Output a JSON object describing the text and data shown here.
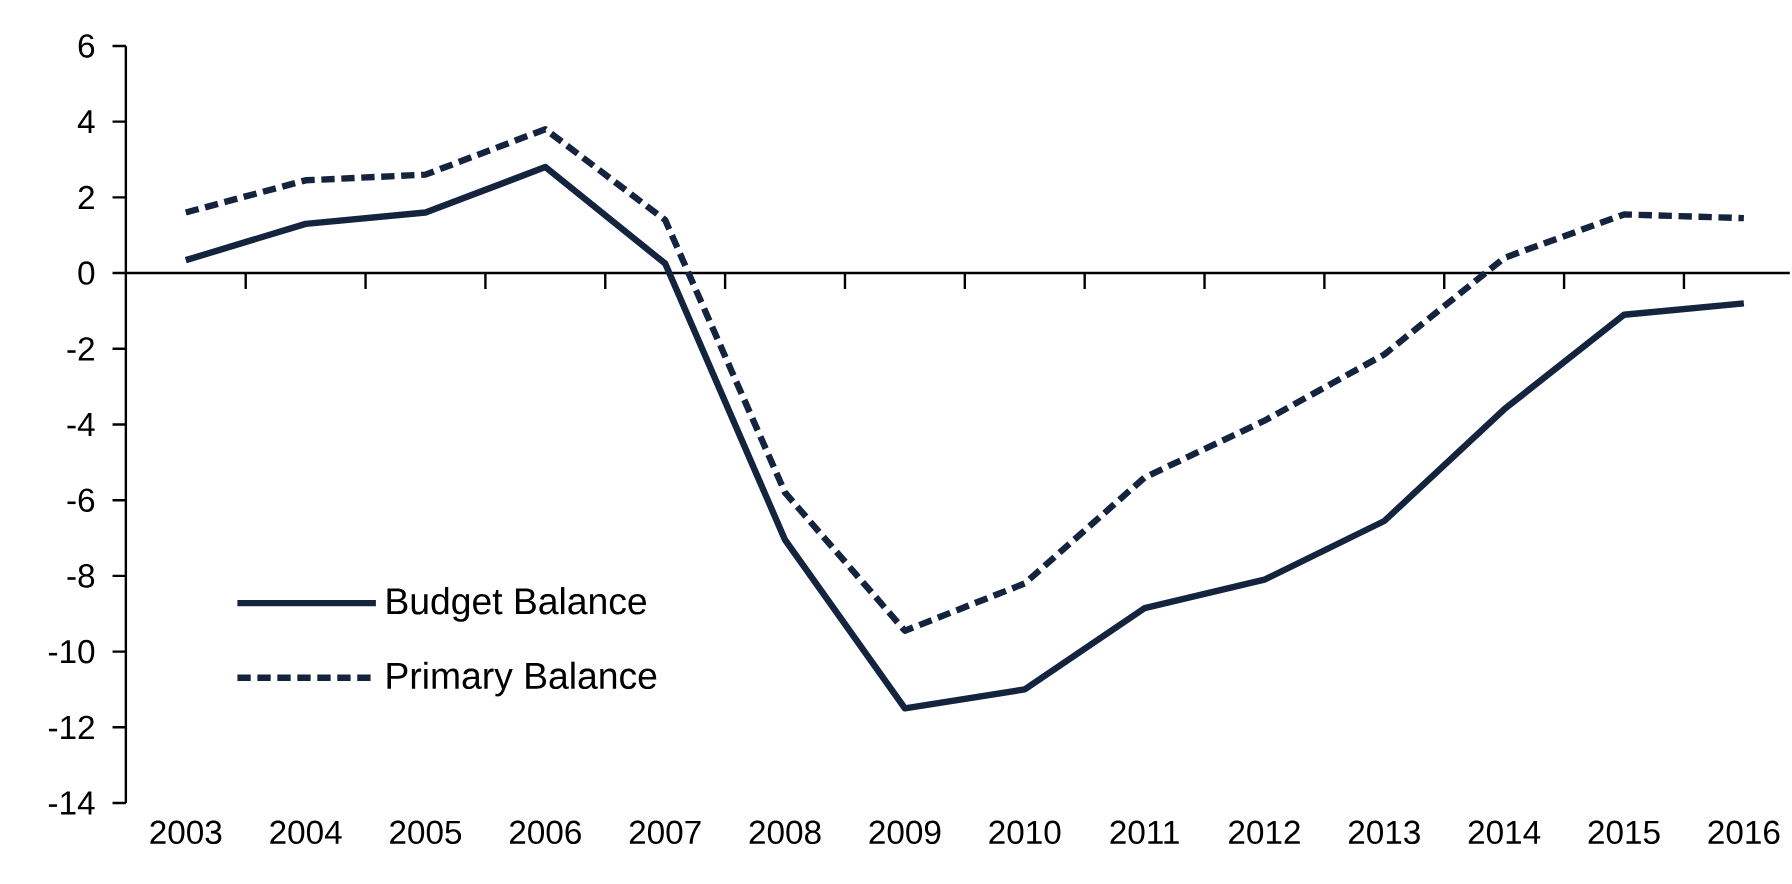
{
  "chart_data": {
    "type": "line",
    "categories": [
      "2003",
      "2004",
      "2005",
      "2006",
      "2007",
      "2008",
      "2009",
      "2010",
      "2011",
      "2012",
      "2013",
      "2014",
      "2015",
      "2016"
    ],
    "series": [
      {
        "name": "Budget Balance",
        "color": "#14243f",
        "line_style": "solid",
        "values": [
          0.34,
          1.3,
          1.6,
          2.8,
          0.25,
          -7.05,
          -11.5,
          -11.0,
          -8.85,
          -8.1,
          -6.55,
          -3.6,
          -1.1,
          -0.8
        ]
      },
      {
        "name": "Primary Balance",
        "color": "#14243f",
        "line_style": "dashed",
        "values": [
          1.6,
          2.45,
          2.6,
          3.8,
          1.4,
          -5.8,
          -9.45,
          -8.2,
          -5.4,
          -3.9,
          -2.15,
          0.4,
          1.55,
          1.45
        ]
      }
    ],
    "ylim": [
      -14,
      6
    ],
    "yticks": [
      -14,
      -12,
      -10,
      -8,
      -6,
      -4,
      -2,
      0,
      2,
      4,
      6
    ],
    "legend": "bottom left",
    "marker": "none"
  }
}
